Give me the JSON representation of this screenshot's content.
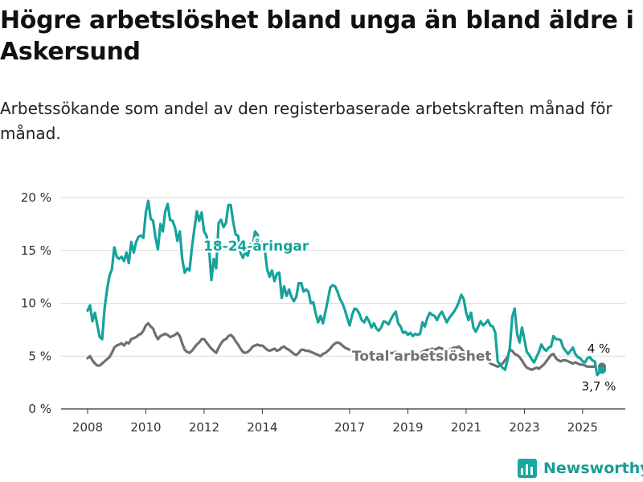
{
  "title": "Högre arbetslöshet bland unga än bland äldre i Askersund",
  "subtitle": "Arbetssökande som andel av den registerbaserade arbetskraften månad för månad.",
  "brand": {
    "name": "Newsworthy",
    "icon": "newsworthy-logo-icon",
    "color": "#1aa9a0"
  },
  "chart_data": {
    "type": "line",
    "y_ticks": [
      "0 %",
      "5 %",
      "10 %",
      "15 %",
      "20 %"
    ],
    "ylim": [
      0,
      20
    ],
    "x_ticks": [
      "2008",
      "2010",
      "2012",
      "2014",
      "2017",
      "2019",
      "2021",
      "2023",
      "2025"
    ],
    "xlim": [
      "2008-01",
      "2025-08"
    ],
    "grid": true,
    "end_labels": [
      "4 %",
      "3,7 %"
    ],
    "series": [
      {
        "name": "18-24-åringar",
        "color": "#15a39a",
        "start": "2008-01",
        "values": [
          9.3,
          9.8,
          8.3,
          9.1,
          7.9,
          6.8,
          6.6,
          9.5,
          11.3,
          12.6,
          13.2,
          15.3,
          14.4,
          14.2,
          14.4,
          14.0,
          14.8,
          13.8,
          15.8,
          14.8,
          15.8,
          16.3,
          16.4,
          16.2,
          18.6,
          19.7,
          18.0,
          17.8,
          16.2,
          15.1,
          17.5,
          16.8,
          18.7,
          19.4,
          17.9,
          17.8,
          17.2,
          15.9,
          16.8,
          14.2,
          12.9,
          13.3,
          13.1,
          15.3,
          17.0,
          18.7,
          17.8,
          18.6,
          16.8,
          16.4,
          15.4,
          12.2,
          14.2,
          13.3,
          17.6,
          17.9,
          17.2,
          17.6,
          19.3,
          19.3,
          17.7,
          16.5,
          16.4,
          14.8,
          14.3,
          14.8,
          14.5,
          15.6,
          15.3,
          16.8,
          16.5,
          15.7,
          15.8,
          15.1,
          13.2,
          12.5,
          13.1,
          12.1,
          12.8,
          12.9,
          10.5,
          11.6,
          10.7,
          11.3,
          10.6,
          10.2,
          10.6,
          11.9,
          11.9,
          11.1,
          11.3,
          11.1,
          10.0,
          10.1,
          9.0,
          8.2,
          8.8,
          8.1,
          9.2,
          10.3,
          11.5,
          11.7,
          11.6,
          11.1,
          10.4,
          10.0,
          9.4,
          8.6,
          7.9,
          8.9,
          9.5,
          9.4,
          9.0,
          8.4,
          8.2,
          8.7,
          8.3,
          7.7,
          8.1,
          7.6,
          7.4,
          7.7,
          8.3,
          8.2,
          8.0,
          8.5,
          8.9,
          9.2,
          8.1,
          7.8,
          7.2,
          7.3,
          7.0,
          7.2,
          6.9,
          7.1,
          7.0,
          7.1,
          8.2,
          7.8,
          8.6,
          9.1,
          8.9,
          8.8,
          8.4,
          8.9,
          9.2,
          8.7,
          8.2,
          8.6,
          8.9,
          9.2,
          9.6,
          10.1,
          10.8,
          10.4,
          9.1,
          8.4,
          9.1,
          7.7,
          7.3,
          7.8,
          8.3,
          7.9,
          8.1,
          8.4,
          7.9,
          7.8,
          7.2,
          4.5,
          4.2,
          3.9,
          3.7,
          4.6,
          5.8,
          8.7,
          9.5,
          7.1,
          6.3,
          7.7,
          6.6,
          5.4,
          5.1,
          4.7,
          4.4,
          4.9,
          5.4,
          6.1,
          5.7,
          5.5,
          5.8,
          5.9,
          6.9,
          6.6,
          6.6,
          6.5,
          5.8,
          5.5,
          5.2,
          5.5,
          5.8,
          5.2,
          4.9,
          4.8,
          4.5,
          4.4,
          4.8,
          4.9,
          4.6,
          4.5,
          3.2,
          3.5,
          3.7
        ]
      },
      {
        "name": "Total arbetslöshet",
        "color": "#6f6f70",
        "start": "2008-01",
        "values": [
          4.8,
          5.0,
          4.6,
          4.3,
          4.1,
          4.1,
          4.3,
          4.5,
          4.7,
          4.9,
          5.3,
          5.8,
          6.0,
          6.1,
          6.2,
          6.0,
          6.3,
          6.2,
          6.6,
          6.7,
          6.8,
          7.0,
          7.1,
          7.4,
          7.9,
          8.1,
          7.8,
          7.6,
          7.0,
          6.6,
          6.9,
          7.0,
          7.1,
          7.0,
          6.8,
          6.9,
          7.0,
          7.2,
          6.9,
          6.2,
          5.6,
          5.4,
          5.3,
          5.5,
          5.8,
          6.1,
          6.3,
          6.6,
          6.6,
          6.3,
          6.0,
          5.7,
          5.5,
          5.3,
          5.8,
          6.2,
          6.5,
          6.6,
          6.9,
          7.0,
          6.8,
          6.4,
          6.1,
          5.7,
          5.4,
          5.3,
          5.4,
          5.6,
          5.9,
          6.0,
          6.1,
          6.0,
          6.0,
          5.8,
          5.6,
          5.5,
          5.6,
          5.7,
          5.5,
          5.6,
          5.8,
          5.9,
          5.7,
          5.6,
          5.4,
          5.2,
          5.1,
          5.3,
          5.6,
          5.6,
          5.5,
          5.5,
          5.4,
          5.3,
          5.2,
          5.1,
          5.0,
          5.2,
          5.3,
          5.5,
          5.7,
          6.0,
          6.2,
          6.3,
          6.2,
          6.0,
          5.8,
          5.7,
          5.6,
          5.5,
          5.5,
          5.3,
          5.2,
          5.2,
          5.1,
          5.2,
          5.2,
          5.1,
          5.1,
          5.2,
          5.3,
          5.1,
          5.0,
          5.0,
          5.2,
          5.3,
          5.3,
          5.4,
          5.2,
          5.1,
          5.0,
          5.1,
          5.0,
          5.0,
          5.1,
          5.0,
          5.1,
          5.2,
          5.4,
          5.5,
          5.6,
          5.6,
          5.7,
          5.6,
          5.7,
          5.8,
          5.7,
          5.6,
          5.5,
          5.6,
          5.7,
          5.8,
          5.8,
          5.9,
          5.7,
          5.4,
          5.3,
          5.1,
          5.0,
          5.1,
          5.2,
          5.1,
          5.0,
          4.9,
          4.8,
          4.6,
          4.3,
          4.2,
          4.1,
          4.0,
          4.1,
          4.3,
          4.6,
          4.9,
          5.6,
          5.5,
          5.2,
          5.1,
          4.9,
          4.6,
          4.2,
          3.9,
          3.8,
          3.7,
          3.8,
          3.9,
          3.8,
          4.0,
          4.2,
          4.5,
          4.8,
          5.1,
          5.2,
          4.8,
          4.6,
          4.5,
          4.6,
          4.6,
          4.5,
          4.4,
          4.3,
          4.4,
          4.3,
          4.2,
          4.2,
          4.1,
          4.0,
          4.0,
          4.0,
          4.0
        ]
      }
    ]
  }
}
